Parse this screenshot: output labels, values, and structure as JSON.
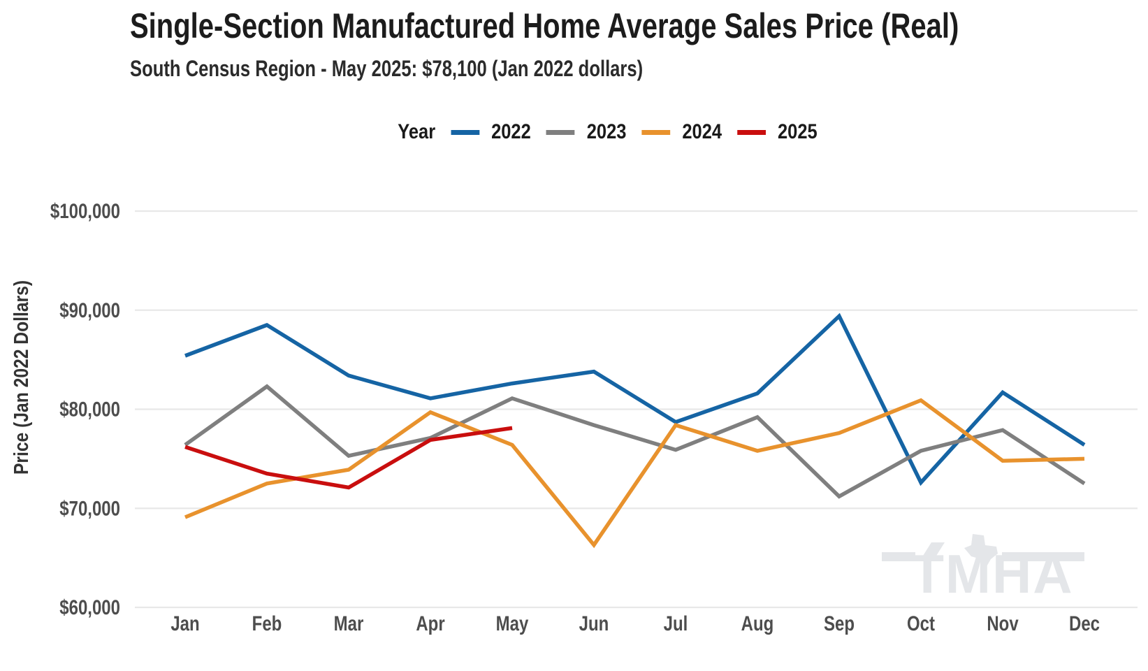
{
  "header": {
    "title": "Single-Section Manufactured Home Average Sales Price (Real)",
    "subtitle": "South Census Region - May 2025: $78,100 (Jan 2022 dollars)"
  },
  "legend": {
    "label": "Year",
    "items": [
      {
        "label": "2022",
        "color": "#1564A4"
      },
      {
        "label": "2023",
        "color": "#7F7F7F"
      },
      {
        "label": "2024",
        "color": "#E8922D"
      },
      {
        "label": "2025",
        "color": "#C90E0E"
      }
    ]
  },
  "watermark": {
    "text": "TMHA",
    "color": "#E4E6E9"
  },
  "axis_text_color": "#4D4D4D",
  "gridline_color": "#E8E8E8",
  "chart_data": {
    "type": "line",
    "title": "Single-Section Manufactured Home Average Sales Price (Real)",
    "subtitle": "South Census Region - May 2025: $78,100 (Jan 2022 dollars)",
    "xlabel": "",
    "ylabel": "Price (Jan 2022 Dollars)",
    "categories": [
      "Jan",
      "Feb",
      "Mar",
      "Apr",
      "May",
      "Jun",
      "Jul",
      "Aug",
      "Sep",
      "Oct",
      "Nov",
      "Dec"
    ],
    "ylim": [
      60000,
      100000
    ],
    "grid": "horizontal-only",
    "legend_position": "top",
    "yticks": [
      {
        "value": 100000,
        "label": "$100,000"
      },
      {
        "value": 90000,
        "label": "$90,000"
      },
      {
        "value": 80000,
        "label": "$80,000"
      },
      {
        "value": 70000,
        "label": "$70,000"
      },
      {
        "value": 60000,
        "label": "$60,000"
      }
    ],
    "series": [
      {
        "name": "2022",
        "color": "#1564A4",
        "values": [
          85400,
          88500,
          83400,
          81100,
          82600,
          83800,
          78700,
          81600,
          89400,
          72600,
          81700,
          76400
        ]
      },
      {
        "name": "2023",
        "color": "#7F7F7F",
        "values": [
          76400,
          82300,
          75300,
          77100,
          81100,
          78400,
          75900,
          79200,
          71200,
          75800,
          77900,
          72500
        ]
      },
      {
        "name": "2024",
        "color": "#E8922D",
        "values": [
          69100,
          72500,
          73900,
          79700,
          76400,
          66300,
          78400,
          75800,
          77600,
          80900,
          74800,
          75000
        ]
      },
      {
        "name": "2025",
        "color": "#C90E0E",
        "values": [
          76200,
          73500,
          72100,
          76900,
          78100,
          null,
          null,
          null,
          null,
          null,
          null,
          null
        ]
      }
    ]
  }
}
